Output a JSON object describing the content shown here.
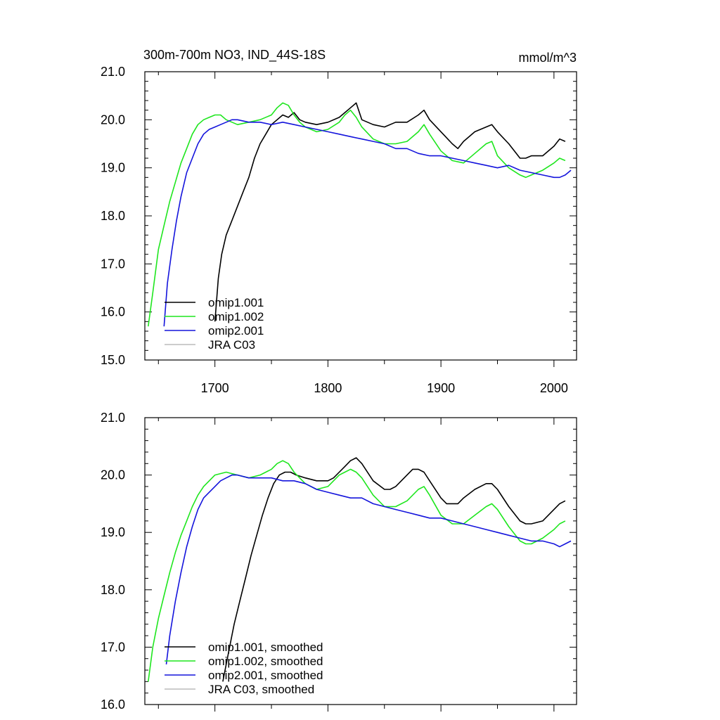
{
  "title_left": "300m-700m NO3, IND_44S-18S",
  "title_right": "mmol/m^3",
  "colors": {
    "omip1_001": "#000000",
    "omip1_002": "#1ee61e",
    "omip2_001": "#1414dc",
    "jra_c03": "#bbbbbb"
  },
  "chart_data": [
    {
      "type": "line",
      "panel": "top",
      "title": "300m-700m NO3, IND_44S-18S",
      "units_label": "mmol/m^3",
      "xlabel": "",
      "ylabel": "",
      "xlim": [
        1638,
        2020
      ],
      "ylim": [
        15.0,
        21.0
      ],
      "x_ticks": [
        1700,
        1800,
        1900,
        2000
      ],
      "x_tick_labels": [
        "1700",
        "1800",
        "1900",
        "2000"
      ],
      "y_ticks": [
        15.0,
        16.0,
        17.0,
        18.0,
        19.0,
        20.0,
        21.0
      ],
      "y_tick_labels": [
        "15.0",
        "16.0",
        "17.0",
        "18.0",
        "19.0",
        "20.0",
        "21.0"
      ],
      "legend": [
        "omip1.001",
        "omip1.002",
        "omip2.001",
        "JRA C03"
      ],
      "legend_position": "lower-left",
      "series": [
        {
          "name": "omip1.001",
          "color_key": "omip1_001",
          "x": [
            1700,
            1703,
            1706,
            1710,
            1715,
            1720,
            1725,
            1730,
            1735,
            1740,
            1745,
            1750,
            1755,
            1760,
            1765,
            1770,
            1775,
            1780,
            1790,
            1800,
            1810,
            1815,
            1820,
            1825,
            1830,
            1840,
            1850,
            1860,
            1870,
            1880,
            1885,
            1890,
            1900,
            1910,
            1915,
            1920,
            1930,
            1940,
            1945,
            1950,
            1960,
            1970,
            1975,
            1980,
            1990,
            2000,
            2005,
            2010
          ],
          "y": [
            15.8,
            16.7,
            17.2,
            17.6,
            17.9,
            18.2,
            18.5,
            18.8,
            19.2,
            19.5,
            19.7,
            19.9,
            20.0,
            20.1,
            20.05,
            20.15,
            20.0,
            19.95,
            19.9,
            19.95,
            20.05,
            20.15,
            20.25,
            20.35,
            20.0,
            19.9,
            19.85,
            19.95,
            19.95,
            20.1,
            20.2,
            20.0,
            19.75,
            19.5,
            19.4,
            19.55,
            19.75,
            19.85,
            19.9,
            19.75,
            19.5,
            19.2,
            19.2,
            19.25,
            19.25,
            19.45,
            19.6,
            19.55
          ]
        },
        {
          "name": "omip1.002",
          "color_key": "omip1_002",
          "x": [
            1641,
            1645,
            1650,
            1655,
            1660,
            1665,
            1670,
            1675,
            1680,
            1685,
            1690,
            1695,
            1700,
            1705,
            1710,
            1720,
            1730,
            1740,
            1750,
            1755,
            1760,
            1765,
            1770,
            1775,
            1780,
            1790,
            1800,
            1810,
            1815,
            1820,
            1825,
            1830,
            1840,
            1850,
            1860,
            1870,
            1880,
            1885,
            1890,
            1900,
            1910,
            1920,
            1930,
            1940,
            1945,
            1950,
            1960,
            1970,
            1975,
            1980,
            1990,
            2000,
            2005,
            2010
          ],
          "y": [
            15.7,
            16.4,
            17.3,
            17.8,
            18.3,
            18.7,
            19.1,
            19.4,
            19.7,
            19.9,
            20.0,
            20.05,
            20.1,
            20.1,
            20.0,
            19.9,
            19.95,
            20.0,
            20.1,
            20.25,
            20.35,
            20.3,
            20.1,
            19.95,
            19.85,
            19.75,
            19.8,
            19.95,
            20.1,
            20.2,
            20.05,
            19.85,
            19.6,
            19.5,
            19.5,
            19.55,
            19.75,
            19.9,
            19.7,
            19.35,
            19.15,
            19.1,
            19.3,
            19.5,
            19.55,
            19.25,
            19.0,
            18.85,
            18.8,
            18.85,
            18.95,
            19.1,
            19.2,
            19.15
          ]
        },
        {
          "name": "omip2.001",
          "color_key": "omip2_001",
          "x": [
            1655,
            1658,
            1662,
            1666,
            1670,
            1675,
            1680,
            1685,
            1690,
            1695,
            1700,
            1705,
            1710,
            1715,
            1720,
            1730,
            1740,
            1750,
            1760,
            1770,
            1780,
            1790,
            1800,
            1810,
            1820,
            1830,
            1840,
            1850,
            1860,
            1870,
            1880,
            1890,
            1900,
            1910,
            1920,
            1930,
            1940,
            1950,
            1960,
            1970,
            1980,
            1990,
            2000,
            2005,
            2010,
            2015
          ],
          "y": [
            15.7,
            16.6,
            17.3,
            17.9,
            18.4,
            18.9,
            19.2,
            19.5,
            19.7,
            19.8,
            19.85,
            19.9,
            19.95,
            20.0,
            20.0,
            19.95,
            19.95,
            19.9,
            19.95,
            19.9,
            19.85,
            19.8,
            19.75,
            19.7,
            19.65,
            19.6,
            19.55,
            19.5,
            19.4,
            19.4,
            19.3,
            19.25,
            19.25,
            19.2,
            19.15,
            19.1,
            19.05,
            19.0,
            19.05,
            18.95,
            18.9,
            18.85,
            18.8,
            18.8,
            18.85,
            18.95
          ]
        },
        {
          "name": "JRA C03",
          "color_key": "jra_c03",
          "x": [],
          "y": []
        }
      ]
    },
    {
      "type": "line",
      "panel": "bottom",
      "title": "",
      "xlabel": "",
      "ylabel": "",
      "xlim": [
        1638,
        2020
      ],
      "ylim": [
        16.0,
        21.0
      ],
      "x_ticks": [
        1700,
        1800,
        1900,
        2000
      ],
      "x_tick_labels": [],
      "y_ticks": [
        16.0,
        17.0,
        18.0,
        19.0,
        20.0,
        21.0
      ],
      "y_tick_labels": [
        "16.0",
        "17.0",
        "18.0",
        "19.0",
        "20.0",
        "21.0"
      ],
      "legend": [
        "omip1.001, smoothed",
        "omip1.002, smoothed",
        "omip2.001, smoothed",
        "JRA C03, smoothed"
      ],
      "legend_position": "lower-left",
      "series": [
        {
          "name": "omip1.001, smoothed",
          "color_key": "omip1_001",
          "x": [
            1707,
            1712,
            1717,
            1722,
            1727,
            1732,
            1737,
            1742,
            1747,
            1752,
            1757,
            1762,
            1767,
            1772,
            1780,
            1790,
            1800,
            1805,
            1810,
            1815,
            1820,
            1825,
            1830,
            1840,
            1850,
            1855,
            1860,
            1870,
            1875,
            1880,
            1885,
            1890,
            1900,
            1905,
            1910,
            1915,
            1920,
            1930,
            1940,
            1945,
            1950,
            1960,
            1970,
            1975,
            1980,
            1990,
            2000,
            2005,
            2010
          ],
          "y": [
            16.4,
            16.9,
            17.4,
            17.8,
            18.2,
            18.6,
            18.95,
            19.3,
            19.6,
            19.85,
            20.0,
            20.05,
            20.05,
            20.0,
            19.95,
            19.9,
            19.9,
            19.95,
            20.05,
            20.15,
            20.25,
            20.3,
            20.2,
            19.9,
            19.75,
            19.75,
            19.8,
            20.0,
            20.1,
            20.1,
            20.05,
            19.9,
            19.6,
            19.5,
            19.5,
            19.5,
            19.6,
            19.75,
            19.85,
            19.85,
            19.75,
            19.45,
            19.2,
            19.15,
            19.15,
            19.2,
            19.4,
            19.5,
            19.55
          ]
        },
        {
          "name": "omip1.002, smoothed",
          "color_key": "omip1_002",
          "x": [
            1641,
            1645,
            1650,
            1655,
            1660,
            1665,
            1670,
            1675,
            1680,
            1685,
            1690,
            1695,
            1700,
            1710,
            1720,
            1730,
            1740,
            1745,
            1750,
            1755,
            1760,
            1765,
            1770,
            1775,
            1780,
            1790,
            1800,
            1805,
            1810,
            1815,
            1820,
            1825,
            1830,
            1840,
            1850,
            1860,
            1870,
            1880,
            1885,
            1890,
            1900,
            1910,
            1920,
            1930,
            1940,
            1945,
            1950,
            1960,
            1970,
            1975,
            1980,
            1990,
            2000,
            2005,
            2010
          ],
          "y": [
            16.4,
            17.0,
            17.5,
            17.9,
            18.3,
            18.65,
            18.95,
            19.2,
            19.45,
            19.65,
            19.8,
            19.9,
            20.0,
            20.05,
            20.0,
            19.95,
            20.0,
            20.05,
            20.1,
            20.2,
            20.25,
            20.2,
            20.05,
            19.95,
            19.85,
            19.75,
            19.8,
            19.9,
            20.0,
            20.05,
            20.1,
            20.05,
            19.95,
            19.65,
            19.45,
            19.45,
            19.55,
            19.75,
            19.8,
            19.65,
            19.3,
            19.15,
            19.15,
            19.3,
            19.45,
            19.5,
            19.4,
            19.1,
            18.85,
            18.8,
            18.8,
            18.9,
            19.05,
            19.15,
            19.2
          ]
        },
        {
          "name": "omip2.001, smoothed",
          "color_key": "omip2_001",
          "x": [
            1657,
            1660,
            1665,
            1670,
            1675,
            1680,
            1685,
            1690,
            1695,
            1700,
            1705,
            1710,
            1715,
            1720,
            1730,
            1740,
            1750,
            1760,
            1770,
            1780,
            1790,
            1800,
            1810,
            1820,
            1830,
            1840,
            1850,
            1860,
            1870,
            1880,
            1890,
            1900,
            1910,
            1920,
            1930,
            1940,
            1950,
            1960,
            1970,
            1980,
            1990,
            2000,
            2005,
            2010,
            2015
          ],
          "y": [
            16.7,
            17.2,
            17.8,
            18.3,
            18.75,
            19.1,
            19.4,
            19.6,
            19.7,
            19.8,
            19.9,
            19.95,
            20.0,
            20.0,
            19.95,
            19.95,
            19.95,
            19.9,
            19.9,
            19.85,
            19.75,
            19.7,
            19.65,
            19.6,
            19.6,
            19.5,
            19.45,
            19.4,
            19.35,
            19.3,
            19.25,
            19.25,
            19.2,
            19.15,
            19.1,
            19.05,
            19.0,
            18.95,
            18.9,
            18.85,
            18.85,
            18.8,
            18.75,
            18.8,
            18.85
          ]
        },
        {
          "name": "JRA C03, smoothed",
          "color_key": "jra_c03",
          "x": [],
          "y": []
        }
      ]
    }
  ]
}
